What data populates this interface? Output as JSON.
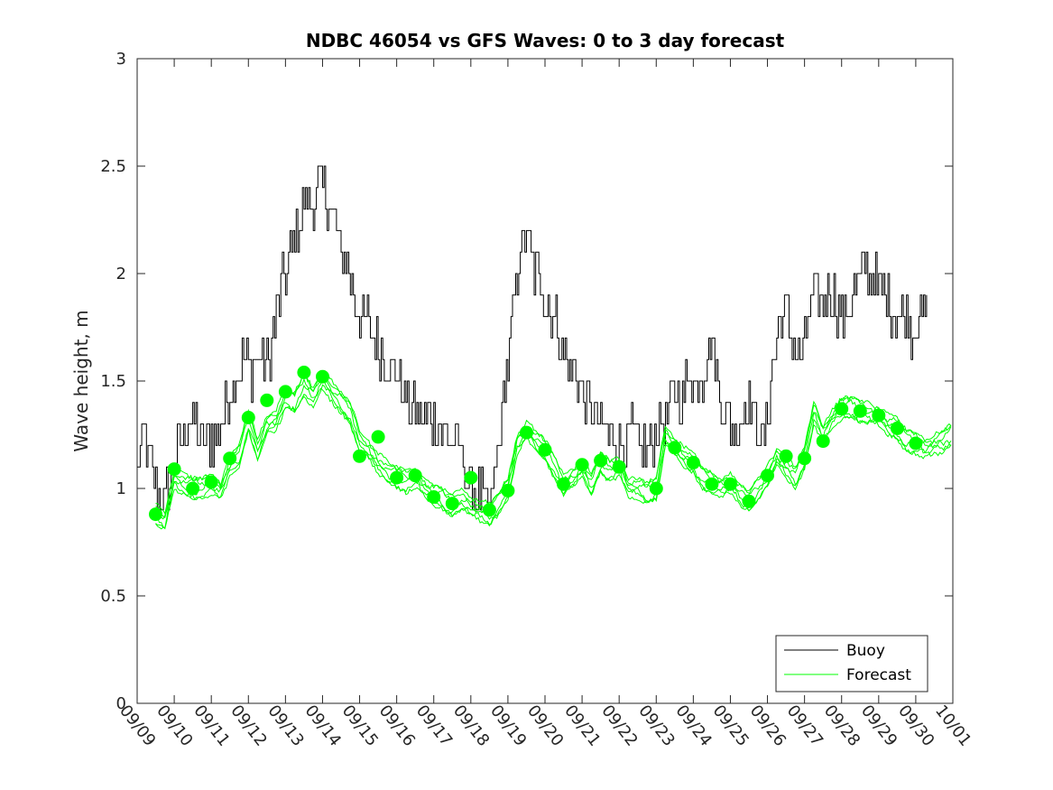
{
  "chart_data": {
    "type": "line",
    "title": "NDBC 46054 vs GFS Waves: 0 to 3 day forecast",
    "xlabel": "",
    "ylabel": "Wave height, m",
    "ylim": [
      0,
      3
    ],
    "yticks": [
      "0",
      "0.5",
      "1",
      "1.5",
      "2",
      "2.5",
      "3"
    ],
    "xlim": [
      0,
      22
    ],
    "xtick_labels": [
      "09/09",
      "09/10",
      "09/11",
      "09/12",
      "09/13",
      "09/14",
      "09/15",
      "09/16",
      "09/17",
      "09/18",
      "09/19",
      "09/20",
      "09/21",
      "09/22",
      "09/23",
      "09/24",
      "09/25",
      "09/26",
      "09/27",
      "09/28",
      "09/29",
      "09/30",
      "10/01"
    ],
    "legend": {
      "position": "bottom-right",
      "entries": [
        "Buoy",
        "Forecast"
      ]
    },
    "colors": {
      "buoy": "#000000",
      "forecast": "#00ff00"
    },
    "series": [
      {
        "name": "Buoy",
        "color": "#000000",
        "anchors": [
          [
            0.0,
            1.05
          ],
          [
            0.15,
            1.25
          ],
          [
            0.3,
            1.15
          ],
          [
            0.5,
            0.98
          ],
          [
            0.7,
            0.92
          ],
          [
            0.9,
            1.05
          ],
          [
            1.1,
            1.2
          ],
          [
            1.3,
            1.28
          ],
          [
            1.5,
            1.32
          ],
          [
            1.7,
            1.25
          ],
          [
            1.9,
            1.22
          ],
          [
            2.1,
            1.25
          ],
          [
            2.3,
            1.35
          ],
          [
            2.5,
            1.42
          ],
          [
            2.7,
            1.55
          ],
          [
            2.9,
            1.6
          ],
          [
            3.1,
            1.55
          ],
          [
            3.3,
            1.62
          ],
          [
            3.5,
            1.58
          ],
          [
            3.7,
            1.75
          ],
          [
            3.9,
            1.95
          ],
          [
            4.1,
            2.05
          ],
          [
            4.3,
            2.2
          ],
          [
            4.5,
            2.3
          ],
          [
            4.7,
            2.35
          ],
          [
            4.9,
            2.4
          ],
          [
            5.1,
            2.35
          ],
          [
            5.3,
            2.25
          ],
          [
            5.5,
            2.1
          ],
          [
            5.7,
            2.0
          ],
          [
            5.9,
            1.85
          ],
          [
            6.1,
            1.8
          ],
          [
            6.3,
            1.75
          ],
          [
            6.5,
            1.65
          ],
          [
            6.7,
            1.6
          ],
          [
            6.9,
            1.55
          ],
          [
            7.1,
            1.5
          ],
          [
            7.3,
            1.42
          ],
          [
            7.5,
            1.35
          ],
          [
            7.7,
            1.3
          ],
          [
            7.9,
            1.35
          ],
          [
            8.1,
            1.3
          ],
          [
            8.3,
            1.25
          ],
          [
            8.5,
            1.2
          ],
          [
            8.7,
            1.18
          ],
          [
            8.9,
            1.05
          ],
          [
            9.1,
            0.98
          ],
          [
            9.3,
            0.95
          ],
          [
            9.5,
            0.9
          ],
          [
            9.7,
            1.15
          ],
          [
            9.9,
            1.45
          ],
          [
            10.1,
            1.75
          ],
          [
            10.3,
            2.1
          ],
          [
            10.5,
            2.2
          ],
          [
            10.7,
            2.0
          ],
          [
            10.9,
            1.95
          ],
          [
            11.1,
            1.85
          ],
          [
            11.3,
            1.75
          ],
          [
            11.5,
            1.65
          ],
          [
            11.7,
            1.55
          ],
          [
            11.9,
            1.5
          ],
          [
            12.1,
            1.4
          ],
          [
            12.3,
            1.35
          ],
          [
            12.5,
            1.3
          ],
          [
            12.7,
            1.25
          ],
          [
            12.9,
            1.22
          ],
          [
            13.1,
            1.2
          ],
          [
            13.3,
            1.25
          ],
          [
            13.5,
            1.22
          ],
          [
            13.7,
            1.18
          ],
          [
            13.9,
            1.2
          ],
          [
            14.1,
            1.3
          ],
          [
            14.3,
            1.35
          ],
          [
            14.5,
            1.45
          ],
          [
            14.7,
            1.4
          ],
          [
            14.9,
            1.55
          ],
          [
            15.1,
            1.5
          ],
          [
            15.3,
            1.55
          ],
          [
            15.5,
            1.7
          ],
          [
            15.7,
            1.45
          ],
          [
            15.9,
            1.35
          ],
          [
            16.1,
            1.25
          ],
          [
            16.3,
            1.35
          ],
          [
            16.5,
            1.4
          ],
          [
            16.7,
            1.3
          ],
          [
            16.9,
            1.2
          ],
          [
            17.1,
            1.55
          ],
          [
            17.3,
            1.75
          ],
          [
            17.5,
            1.8
          ],
          [
            17.7,
            1.7
          ],
          [
            17.9,
            1.6
          ],
          [
            18.1,
            1.8
          ],
          [
            18.3,
            1.9
          ],
          [
            18.5,
            1.85
          ],
          [
            18.7,
            1.95
          ],
          [
            18.9,
            1.85
          ],
          [
            19.1,
            1.8
          ],
          [
            19.3,
            1.9
          ],
          [
            19.5,
            2.0
          ],
          [
            19.7,
            2.05
          ],
          [
            19.9,
            1.95
          ],
          [
            20.1,
            1.9
          ],
          [
            20.3,
            1.85
          ],
          [
            20.5,
            1.8
          ],
          [
            20.7,
            1.85
          ],
          [
            20.9,
            1.75
          ],
          [
            21.1,
            1.8
          ],
          [
            21.3,
            1.85
          ]
        ],
        "noise": 0.12
      },
      {
        "name": "Forecast",
        "color": "#00ff00",
        "anchors": [
          [
            0.5,
            0.88
          ],
          [
            0.75,
            0.85
          ],
          [
            1.0,
            1.05
          ],
          [
            1.25,
            1.02
          ],
          [
            1.5,
            1.0
          ],
          [
            1.75,
            1.0
          ],
          [
            2.0,
            1.02
          ],
          [
            2.25,
            0.98
          ],
          [
            2.5,
            1.1
          ],
          [
            2.75,
            1.15
          ],
          [
            3.0,
            1.32
          ],
          [
            3.25,
            1.18
          ],
          [
            3.5,
            1.3
          ],
          [
            3.75,
            1.32
          ],
          [
            4.0,
            1.42
          ],
          [
            4.25,
            1.4
          ],
          [
            4.5,
            1.48
          ],
          [
            4.75,
            1.42
          ],
          [
            5.0,
            1.5
          ],
          [
            5.25,
            1.45
          ],
          [
            5.5,
            1.4
          ],
          [
            5.75,
            1.35
          ],
          [
            6.0,
            1.22
          ],
          [
            6.25,
            1.18
          ],
          [
            6.5,
            1.12
          ],
          [
            6.75,
            1.08
          ],
          [
            7.0,
            1.05
          ],
          [
            7.25,
            1.03
          ],
          [
            7.5,
            1.05
          ],
          [
            7.75,
            1.0
          ],
          [
            8.0,
            0.97
          ],
          [
            8.25,
            0.95
          ],
          [
            8.5,
            0.92
          ],
          [
            8.75,
            0.95
          ],
          [
            9.0,
            0.92
          ],
          [
            9.25,
            0.9
          ],
          [
            9.5,
            0.88
          ],
          [
            9.75,
            0.93
          ],
          [
            10.0,
            1.0
          ],
          [
            10.25,
            1.2
          ],
          [
            10.5,
            1.27
          ],
          [
            10.75,
            1.22
          ],
          [
            11.0,
            1.18
          ],
          [
            11.25,
            1.1
          ],
          [
            11.5,
            1.02
          ],
          [
            11.75,
            1.05
          ],
          [
            12.0,
            1.1
          ],
          [
            12.25,
            1.02
          ],
          [
            12.5,
            1.12
          ],
          [
            12.75,
            1.08
          ],
          [
            13.0,
            1.1
          ],
          [
            13.25,
            1.0
          ],
          [
            13.5,
            1.0
          ],
          [
            13.75,
            0.98
          ],
          [
            14.0,
            1.0
          ],
          [
            14.25,
            1.25
          ],
          [
            14.5,
            1.2
          ],
          [
            14.75,
            1.15
          ],
          [
            15.0,
            1.12
          ],
          [
            15.25,
            1.05
          ],
          [
            15.5,
            1.02
          ],
          [
            15.75,
            1.0
          ],
          [
            16.0,
            1.02
          ],
          [
            16.25,
            0.97
          ],
          [
            16.5,
            0.94
          ],
          [
            16.75,
            1.0
          ],
          [
            17.0,
            1.06
          ],
          [
            17.25,
            1.15
          ],
          [
            17.5,
            1.1
          ],
          [
            17.75,
            1.05
          ],
          [
            18.0,
            1.14
          ],
          [
            18.25,
            1.35
          ],
          [
            18.5,
            1.25
          ],
          [
            18.75,
            1.32
          ],
          [
            19.0,
            1.37
          ],
          [
            19.25,
            1.38
          ],
          [
            19.5,
            1.36
          ],
          [
            19.75,
            1.35
          ],
          [
            20.0,
            1.34
          ],
          [
            20.25,
            1.3
          ],
          [
            20.5,
            1.28
          ],
          [
            20.75,
            1.22
          ],
          [
            21.0,
            1.21
          ],
          [
            21.25,
            1.18
          ],
          [
            21.5,
            1.2
          ],
          [
            21.75,
            1.22
          ],
          [
            22.0,
            1.26
          ]
        ],
        "ensemble_count": 6,
        "ensemble_spread": 0.05
      }
    ],
    "forecast_markers": [
      [
        0.5,
        0.88
      ],
      [
        1.0,
        1.09
      ],
      [
        1.5,
        1.0
      ],
      [
        2.0,
        1.03
      ],
      [
        2.5,
        1.14
      ],
      [
        3.0,
        1.33
      ],
      [
        3.5,
        1.41
      ],
      [
        4.0,
        1.45
      ],
      [
        4.5,
        1.54
      ],
      [
        5.0,
        1.52
      ],
      [
        6.0,
        1.15
      ],
      [
        6.5,
        1.24
      ],
      [
        7.0,
        1.05
      ],
      [
        7.5,
        1.06
      ],
      [
        8.0,
        0.96
      ],
      [
        8.5,
        0.93
      ],
      [
        9.0,
        1.05
      ],
      [
        9.5,
        0.9
      ],
      [
        10.0,
        0.99
      ],
      [
        10.5,
        1.26
      ],
      [
        11.0,
        1.18
      ],
      [
        11.5,
        1.02
      ],
      [
        12.0,
        1.11
      ],
      [
        12.5,
        1.13
      ],
      [
        13.0,
        1.1
      ],
      [
        14.0,
        1.0
      ],
      [
        14.5,
        1.19
      ],
      [
        15.0,
        1.12
      ],
      [
        15.5,
        1.02
      ],
      [
        16.0,
        1.02
      ],
      [
        16.5,
        0.94
      ],
      [
        17.0,
        1.06
      ],
      [
        17.5,
        1.15
      ],
      [
        18.0,
        1.14
      ],
      [
        18.5,
        1.22
      ],
      [
        19.0,
        1.37
      ],
      [
        19.5,
        1.36
      ],
      [
        20.0,
        1.34
      ],
      [
        20.5,
        1.28
      ],
      [
        21.0,
        1.21
      ]
    ]
  }
}
